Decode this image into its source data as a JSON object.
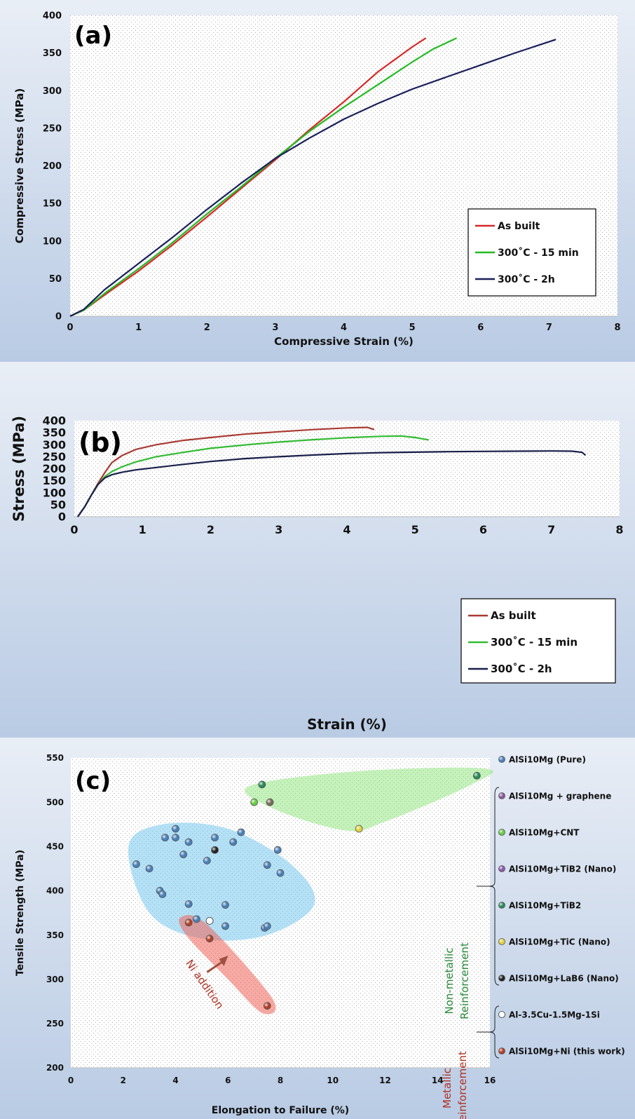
{
  "chart_data": [
    {
      "type": "line",
      "panel_label": "(a)",
      "xlabel": "Compressive Strain (%)",
      "ylabel": "Compressive Stress (MPa)",
      "xlim": [
        0,
        8
      ],
      "ylim": [
        0,
        400
      ],
      "xticks": [
        "0",
        "1",
        "2",
        "3",
        "4",
        "5",
        "6",
        "7",
        "8"
      ],
      "yticks": [
        "0",
        "50",
        "100",
        "150",
        "200",
        "250",
        "300",
        "350",
        "400"
      ],
      "grid": false,
      "legend_position": "bottom-right",
      "series": [
        {
          "name": "As built",
          "color": "#d62828",
          "points": [
            [
              0,
              0
            ],
            [
              0.2,
              8
            ],
            [
              0.5,
              28
            ],
            [
              1,
              60
            ],
            [
              1.5,
              95
            ],
            [
              2,
              132
            ],
            [
              2.5,
              170
            ],
            [
              3,
              208
            ],
            [
              3.5,
              248
            ],
            [
              4,
              285
            ],
            [
              4.5,
              325
            ],
            [
              5,
              358
            ],
            [
              5.2,
              370
            ]
          ]
        },
        {
          "name": "300˚C - 15 min",
          "color": "#22bb22",
          "points": [
            [
              0,
              0
            ],
            [
              0.2,
              8
            ],
            [
              0.5,
              30
            ],
            [
              1,
              63
            ],
            [
              1.5,
              98
            ],
            [
              2,
              136
            ],
            [
              2.5,
              172
            ],
            [
              3,
              210
            ],
            [
              3.5,
              246
            ],
            [
              4,
              278
            ],
            [
              4.5,
              308
            ],
            [
              5,
              338
            ],
            [
              5.3,
              355
            ],
            [
              5.65,
              370
            ]
          ]
        },
        {
          "name": "300˚C - 2h",
          "color": "#1a1f5a",
          "points": [
            [
              0,
              0
            ],
            [
              0.2,
              9
            ],
            [
              0.5,
              35
            ],
            [
              1,
              70
            ],
            [
              1.5,
              105
            ],
            [
              2,
              142
            ],
            [
              2.5,
              177
            ],
            [
              3,
              210
            ],
            [
              3.5,
              237
            ],
            [
              4,
              262
            ],
            [
              4.5,
              283
            ],
            [
              5,
              302
            ],
            [
              5.5,
              318
            ],
            [
              6,
              334
            ],
            [
              6.5,
              350
            ],
            [
              7.1,
              368
            ]
          ]
        }
      ]
    },
    {
      "type": "line",
      "panel_label": "(b)",
      "xlabel": "Strain (%)",
      "ylabel": "Stress (MPa)",
      "xlim": [
        0,
        8
      ],
      "ylim": [
        0,
        400
      ],
      "xticks": [
        "0",
        "1",
        "2",
        "3",
        "4",
        "5",
        "6",
        "7",
        "8"
      ],
      "yticks": [
        "0",
        "50",
        "100",
        "150",
        "200",
        "250",
        "300",
        "350",
        "400"
      ],
      "grid": false,
      "legend_position": "bottom-right",
      "series": [
        {
          "name": "As built",
          "color": "#a83a32",
          "points": [
            [
              0.05,
              0
            ],
            [
              0.15,
              40
            ],
            [
              0.25,
              90
            ],
            [
              0.35,
              140
            ],
            [
              0.45,
              185
            ],
            [
              0.55,
              225
            ],
            [
              0.7,
              255
            ],
            [
              0.9,
              280
            ],
            [
              1.2,
              300
            ],
            [
              1.6,
              318
            ],
            [
              2,
              330
            ],
            [
              2.5,
              344
            ],
            [
              3,
              354
            ],
            [
              3.5,
              363
            ],
            [
              4,
              370
            ],
            [
              4.3,
              372
            ],
            [
              4.4,
              363
            ]
          ]
        },
        {
          "name": "300˚C - 15 min",
          "color": "#33bb33",
          "points": [
            [
              0.05,
              0
            ],
            [
              0.15,
              40
            ],
            [
              0.25,
              90
            ],
            [
              0.35,
              135
            ],
            [
              0.45,
              168
            ],
            [
              0.55,
              188
            ],
            [
              0.7,
              208
            ],
            [
              0.9,
              228
            ],
            [
              1.2,
              250
            ],
            [
              1.6,
              268
            ],
            [
              2,
              285
            ],
            [
              2.5,
              299
            ],
            [
              3,
              311
            ],
            [
              3.5,
              321
            ],
            [
              4,
              329
            ],
            [
              4.5,
              335
            ],
            [
              4.8,
              336
            ],
            [
              5,
              330
            ],
            [
              5.2,
              320
            ]
          ]
        },
        {
          "name": "300˚C - 2h",
          "color": "#1a1f4a",
          "points": [
            [
              0.05,
              0
            ],
            [
              0.15,
              40
            ],
            [
              0.25,
              90
            ],
            [
              0.35,
              135
            ],
            [
              0.45,
              162
            ],
            [
              0.55,
              175
            ],
            [
              0.7,
              185
            ],
            [
              0.9,
              195
            ],
            [
              1.2,
              205
            ],
            [
              1.6,
              218
            ],
            [
              2,
              230
            ],
            [
              2.5,
              242
            ],
            [
              3,
              250
            ],
            [
              3.5,
              257
            ],
            [
              4,
              263
            ],
            [
              4.5,
              267
            ],
            [
              5,
              269
            ],
            [
              5.5,
              271
            ],
            [
              6,
              272
            ],
            [
              6.5,
              273
            ],
            [
              7,
              274
            ],
            [
              7.3,
              273
            ],
            [
              7.45,
              268
            ],
            [
              7.5,
              256
            ]
          ]
        }
      ]
    },
    {
      "type": "scatter",
      "panel_label": "(c)",
      "xlabel": "Elongation to Failure (%)",
      "ylabel": "Tensile Strength (MPa)",
      "xlim": [
        0,
        16
      ],
      "ylim": [
        200,
        550
      ],
      "xticks": [
        "0",
        "2",
        "4",
        "6",
        "8",
        "10",
        "12",
        "14",
        "16"
      ],
      "yticks": [
        "200",
        "250",
        "300",
        "350",
        "400",
        "450",
        "500",
        "550"
      ],
      "grid": false,
      "legend_position": "right",
      "annotations": [
        {
          "text": "Ni addition",
          "color": "#b03020"
        },
        {
          "text": "Non-metallic Reinforcement",
          "color": "#2a8a3a"
        },
        {
          "text": "Metallic reinforcement",
          "color": "#b03020"
        }
      ],
      "series": [
        {
          "name": "AlSi10Mg (Pure)",
          "color": "#4a80b8",
          "points": [
            [
              2.5,
              430
            ],
            [
              3,
              425
            ],
            [
              3.4,
              400
            ],
            [
              3.5,
              396
            ],
            [
              3.6,
              460
            ],
            [
              4,
              470
            ],
            [
              4,
              460
            ],
            [
              4.3,
              441
            ],
            [
              4.5,
              455
            ],
            [
              4.5,
              385
            ],
            [
              4.8,
              368
            ],
            [
              5.2,
              434
            ],
            [
              5.5,
              460
            ],
            [
              5.9,
              384
            ],
            [
              5.9,
              360
            ],
            [
              6.2,
              455
            ],
            [
              6.5,
              466
            ],
            [
              7.4,
              358
            ],
            [
              7.5,
              429
            ],
            [
              7.5,
              360
            ],
            [
              7.9,
              446
            ],
            [
              8,
              420
            ]
          ]
        },
        {
          "name": "AlSi10Mg + graphene",
          "color": "#8a5a9a",
          "points": []
        },
        {
          "name": "AlSi10Mg+CNT",
          "color": "#66cc44",
          "points": [
            [
              7,
              500
            ]
          ]
        },
        {
          "name": "AlSi10Mg+TiB2 (Nano)",
          "color": "#8a5aa8",
          "points": []
        },
        {
          "name": "AlSi10Mg+TiB2",
          "color": "#2a8a5a",
          "points": [
            [
              7.3,
              520
            ],
            [
              15.5,
              530
            ]
          ]
        },
        {
          "name": "AlSi10Mg+TiC (Nano)",
          "color": "#e0d040",
          "points": [
            [
              11,
              470
            ]
          ]
        },
        {
          "name": "AlSi10Mg+LaB6 (Nano)",
          "color": "#222222",
          "points": [
            [
              5.5,
              446
            ]
          ]
        },
        {
          "name": "Al-3.5Cu-1.5Mg-1Si",
          "color": "#ffffff",
          "points": [
            [
              5.3,
              366
            ]
          ]
        },
        {
          "name": "AlSi10Mg+Ni (this work)",
          "color": "#b04028",
          "points": [
            [
              4.5,
              364
            ],
            [
              5.3,
              346
            ],
            [
              7.5,
              270
            ]
          ]
        },
        {
          "name": "",
          "color": "#7a6a5a",
          "points": [
            [
              7.6,
              500
            ]
          ]
        }
      ]
    }
  ]
}
